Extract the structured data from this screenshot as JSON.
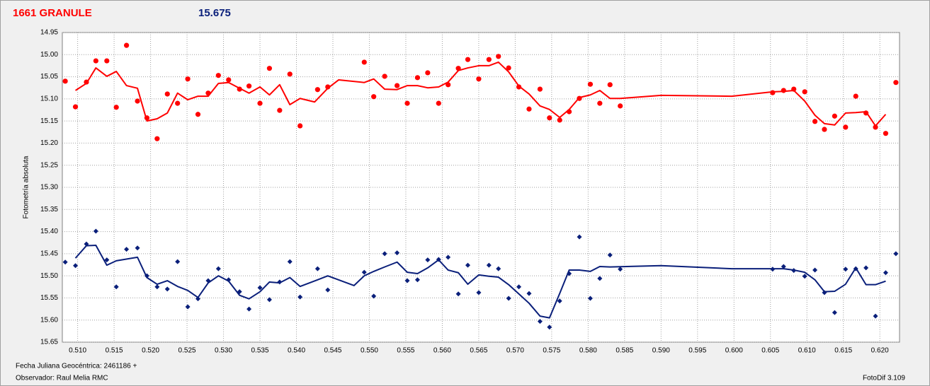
{
  "chart_data": {
    "type": "scatter",
    "title": "1661 GRANULE",
    "subtitle": "15.675",
    "y_label": "Fotometría absoluta",
    "x_label": "Fecha Juliana Geocéntrica: 2461186 +",
    "observer": "Observador: Raul Melia RMC",
    "software": "FotoDif 3.109",
    "grid": true,
    "y_inverted": true,
    "xlim": [
      0.5079,
      0.6227
    ],
    "ylim": [
      14.95,
      15.65
    ],
    "xticks": [
      {
        "value": 0.51,
        "label": "0.510"
      },
      0.515,
      {
        "value": 0.52,
        "label": "0.520"
      },
      0.525,
      {
        "value": 0.53,
        "label": "0.530"
      },
      0.535,
      {
        "value": 0.54,
        "label": "0.540"
      },
      0.545,
      {
        "value": 0.55,
        "label": "0.550"
      },
      0.555,
      {
        "value": 0.56,
        "label": "0.560"
      },
      0.565,
      {
        "value": 0.57,
        "label": "0.570"
      },
      0.575,
      {
        "value": 0.58,
        "label": "0.580"
      },
      0.585,
      {
        "value": 0.59,
        "label": "0.590"
      },
      0.595,
      {
        "value": 0.6,
        "label": "0.600"
      },
      0.605,
      {
        "value": 0.61,
        "label": "0.610"
      },
      0.615,
      {
        "value": 0.62,
        "label": "0.620"
      }
    ],
    "yticks": [
      14.95,
      {
        "value": 15,
        "label": "15.00"
      },
      15.05,
      {
        "value": 15.1,
        "label": "15.10"
      },
      15.15,
      {
        "value": 15.2,
        "label": "15.20"
      },
      15.25,
      {
        "value": 15.3,
        "label": "15.30"
      },
      15.35,
      {
        "value": 15.4,
        "label": "15.40"
      },
      15.45,
      {
        "value": 15.5,
        "label": "15.50"
      },
      15.55,
      {
        "value": 15.6,
        "label": "15.60"
      },
      15.65
    ],
    "series": [
      {
        "color": "#ff0000",
        "mode": "markers",
        "marker": "circle",
        "x": [
          0.5083,
          0.5097,
          0.5112,
          0.5125,
          0.514,
          0.5153,
          0.5167,
          0.5182,
          0.5195,
          0.5209,
          0.5223,
          0.5237,
          0.5251,
          0.5265,
          0.5279,
          0.5293,
          0.5307,
          0.5322,
          0.5335,
          0.535,
          0.5363,
          0.5377,
          0.5391,
          0.5405,
          0.5429,
          0.5443,
          0.5493,
          0.5506,
          0.5521,
          0.5538,
          0.5552,
          0.5566,
          0.558,
          0.5595,
          0.5608,
          0.5622,
          0.5635,
          0.565,
          0.5664,
          0.5677,
          0.5691,
          0.5705,
          0.5719,
          0.5734,
          0.5747,
          0.5761,
          0.5774,
          0.5788,
          0.5803,
          0.5816,
          0.583,
          0.5844,
          0.6053,
          0.6068,
          0.6082,
          0.6097,
          0.6111,
          0.6124,
          0.6138,
          0.6153,
          0.6167,
          0.6181,
          0.6194,
          0.6208,
          0.6222
        ],
        "values": [
          15.06,
          15.118,
          15.062,
          15.014,
          15.014,
          15.119,
          14.979,
          15.105,
          15.143,
          15.19,
          15.089,
          15.11,
          15.055,
          15.135,
          15.087,
          15.047,
          15.057,
          15.078,
          15.071,
          15.11,
          15.031,
          15.126,
          15.044,
          15.161,
          15.079,
          15.073,
          15.017,
          15.095,
          15.049,
          15.07,
          15.11,
          15.052,
          15.041,
          15.11,
          15.068,
          15.031,
          15.011,
          15.055,
          15.011,
          15.004,
          15.03,
          15.073,
          15.123,
          15.078,
          15.143,
          15.148,
          15.129,
          15.099,
          15.067,
          15.11,
          15.068,
          15.116,
          15.086,
          15.081,
          15.078,
          15.084,
          15.151,
          15.169,
          15.139,
          15.164,
          15.094,
          15.132,
          15.164,
          15.178,
          15.063
        ]
      },
      {
        "color": "#ff0000",
        "mode": "lines",
        "x": [
          0.5097,
          0.5112,
          0.5125,
          0.514,
          0.5153,
          0.5167,
          0.5182,
          0.5195,
          0.5209,
          0.5223,
          0.5237,
          0.5251,
          0.5265,
          0.5279,
          0.5293,
          0.5307,
          0.5322,
          0.5335,
          0.535,
          0.5363,
          0.5377,
          0.5391,
          0.5405,
          0.5425,
          0.5443,
          0.5458,
          0.5493,
          0.5506,
          0.5521,
          0.5538,
          0.5552,
          0.5566,
          0.558,
          0.5595,
          0.5608,
          0.5622,
          0.5635,
          0.565,
          0.5664,
          0.5677,
          0.5691,
          0.5705,
          0.5719,
          0.5734,
          0.5747,
          0.5761,
          0.5774,
          0.5788,
          0.5803,
          0.5816,
          0.583,
          0.5844,
          0.59,
          0.5997,
          0.6053,
          0.6068,
          0.6082,
          0.6097,
          0.6111,
          0.6124,
          0.6138,
          0.6153,
          0.6167,
          0.6181,
          0.6194,
          0.6208
        ],
        "values": [
          15.081,
          15.065,
          15.03,
          15.049,
          15.038,
          15.07,
          15.076,
          15.15,
          15.145,
          15.132,
          15.087,
          15.102,
          15.094,
          15.094,
          15.065,
          15.063,
          15.076,
          15.087,
          15.073,
          15.091,
          15.068,
          15.113,
          15.099,
          15.107,
          15.076,
          15.057,
          15.063,
          15.055,
          15.078,
          15.079,
          15.07,
          15.07,
          15.075,
          15.073,
          15.062,
          15.036,
          15.03,
          15.025,
          15.025,
          15.017,
          15.039,
          15.071,
          15.089,
          15.116,
          15.124,
          15.142,
          15.124,
          15.097,
          15.091,
          15.081,
          15.099,
          15.099,
          15.092,
          15.094,
          15.084,
          15.083,
          15.081,
          15.105,
          15.137,
          15.156,
          15.159,
          15.132,
          15.131,
          15.129,
          15.161,
          15.135
        ]
      },
      {
        "color": "#0a1f7a",
        "mode": "markers",
        "marker": "diamond",
        "x": [
          0.5083,
          0.5097,
          0.5112,
          0.5125,
          0.514,
          0.5153,
          0.5167,
          0.5182,
          0.5195,
          0.5209,
          0.5223,
          0.5237,
          0.5251,
          0.5265,
          0.5279,
          0.5293,
          0.5307,
          0.5322,
          0.5335,
          0.535,
          0.5363,
          0.5377,
          0.5391,
          0.5405,
          0.5429,
          0.5443,
          0.5493,
          0.5506,
          0.5521,
          0.5538,
          0.5552,
          0.5566,
          0.558,
          0.5595,
          0.5608,
          0.5622,
          0.5635,
          0.565,
          0.5664,
          0.5677,
          0.5691,
          0.5705,
          0.5719,
          0.5734,
          0.5747,
          0.5761,
          0.5774,
          0.5788,
          0.5803,
          0.5816,
          0.583,
          0.5844,
          0.6053,
          0.6068,
          0.6082,
          0.6097,
          0.6111,
          0.6124,
          0.6138,
          0.6153,
          0.6167,
          0.6181,
          0.6194,
          0.6208,
          0.6222
        ],
        "values": [
          15.469,
          15.477,
          15.428,
          15.399,
          15.464,
          15.525,
          15.44,
          15.437,
          15.5,
          15.525,
          15.53,
          15.468,
          15.57,
          15.552,
          15.511,
          15.484,
          15.509,
          15.536,
          15.575,
          15.527,
          15.554,
          15.514,
          15.468,
          15.548,
          15.484,
          15.532,
          15.492,
          15.546,
          15.45,
          15.448,
          15.511,
          15.509,
          15.464,
          15.463,
          15.458,
          15.541,
          15.476,
          15.538,
          15.476,
          15.484,
          15.551,
          15.525,
          15.54,
          15.603,
          15.616,
          15.557,
          15.495,
          15.412,
          15.551,
          15.506,
          15.453,
          15.485,
          15.485,
          15.479,
          15.488,
          15.501,
          15.487,
          15.538,
          15.583,
          15.485,
          15.484,
          15.482,
          15.591,
          15.493,
          15.45
        ]
      },
      {
        "color": "#0a1f7a",
        "mode": "lines",
        "x": [
          0.5097,
          0.5112,
          0.5125,
          0.514,
          0.5153,
          0.5182,
          0.5195,
          0.5209,
          0.5223,
          0.5237,
          0.5251,
          0.5265,
          0.5279,
          0.5293,
          0.5307,
          0.5322,
          0.5335,
          0.535,
          0.5363,
          0.5377,
          0.5391,
          0.5405,
          0.5429,
          0.5443,
          0.5479,
          0.5493,
          0.5506,
          0.5521,
          0.5538,
          0.5552,
          0.5566,
          0.558,
          0.5595,
          0.5608,
          0.5622,
          0.5635,
          0.565,
          0.5664,
          0.5677,
          0.5691,
          0.5705,
          0.5719,
          0.5734,
          0.5747,
          0.5761,
          0.5774,
          0.5788,
          0.5803,
          0.5816,
          0.583,
          0.59,
          0.5997,
          0.6053,
          0.6068,
          0.6082,
          0.6097,
          0.6111,
          0.6124,
          0.6138,
          0.6153,
          0.6167,
          0.6181,
          0.6194,
          0.6208
        ],
        "values": [
          15.46,
          15.432,
          15.431,
          15.476,
          15.466,
          15.458,
          15.504,
          15.519,
          15.511,
          15.524,
          15.533,
          15.549,
          15.516,
          15.5,
          15.512,
          15.544,
          15.552,
          15.536,
          15.514,
          15.516,
          15.504,
          15.524,
          15.509,
          15.5,
          15.522,
          15.5,
          15.49,
          15.48,
          15.469,
          15.492,
          15.495,
          15.482,
          15.464,
          15.487,
          15.493,
          15.519,
          15.498,
          15.501,
          15.503,
          15.52,
          15.541,
          15.562,
          15.591,
          15.595,
          15.54,
          15.487,
          15.487,
          15.49,
          15.479,
          15.48,
          15.477,
          15.484,
          15.484,
          15.484,
          15.487,
          15.492,
          15.509,
          15.536,
          15.535,
          15.519,
          15.482,
          15.52,
          15.52,
          15.512
        ]
      }
    ]
  }
}
